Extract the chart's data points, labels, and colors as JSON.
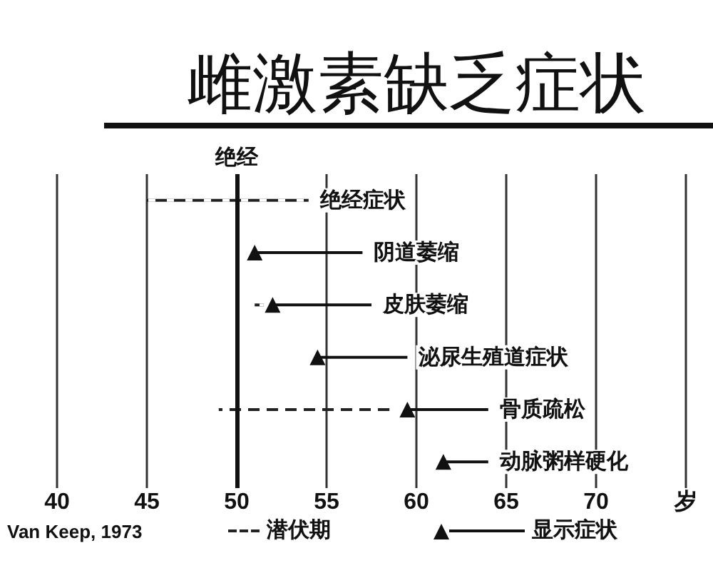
{
  "chart_data": {
    "type": "bar",
    "orientation": "horizontal",
    "title": "雌激素缺乏症状",
    "categories": [
      "绝经症状",
      "阴道萎缩",
      "皮肤萎缩",
      "泌尿生殖道症状",
      "骨质疏松",
      "动脉粥样硬化"
    ],
    "series": [
      {
        "name": "潜伏期",
        "color": "#222222",
        "line_style": "dashed",
        "base": [
          45,
          null,
          51,
          null,
          49,
          null
        ],
        "values": [
          9,
          null,
          0.5,
          null,
          9.5,
          null
        ]
      },
      {
        "name": "显示症状",
        "color": "#111111",
        "line_style": "solid",
        "base": [
          null,
          51,
          52,
          54.5,
          59.5,
          61.5
        ],
        "values": [
          null,
          6,
          5.5,
          5,
          4.5,
          2.5
        ]
      },
      {
        "type": "scatter",
        "color": "#111111",
        "marker": "triangle",
        "values": [
          null,
          51,
          52,
          54.5,
          59.5,
          61.5
        ]
      }
    ],
    "xlim": [
      40,
      75
    ],
    "xticks": [
      40,
      45,
      50,
      55,
      60,
      65,
      70,
      {
        "value": 75,
        "label": "岁"
      }
    ],
    "ref_lines": [
      {
        "axis": "x",
        "value": 50,
        "label": "绝经"
      }
    ],
    "grid": "x",
    "legend": "bottom",
    "annotations": [
      "Van Keep, 1973"
    ]
  }
}
